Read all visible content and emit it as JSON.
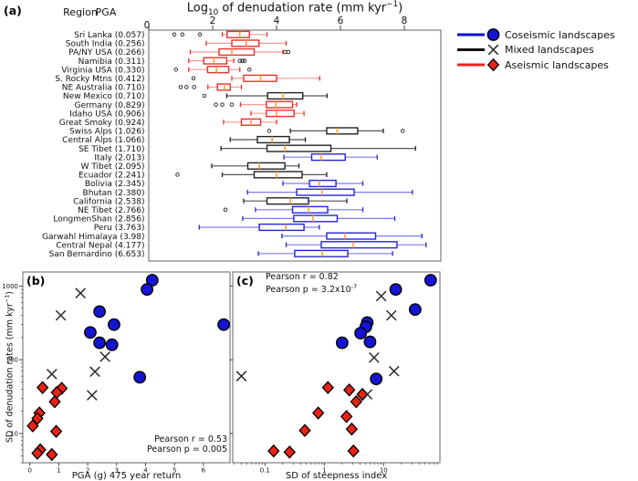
{
  "panels": {
    "a": {
      "letter": "(a)",
      "header": {
        "region": "Region",
        "pga": "PGA"
      },
      "title": {
        "pre": "Log",
        "sub": "10",
        "mid": " of denudation rate (mm kyr",
        "sup": "−1",
        "post": ")"
      }
    },
    "b": {
      "letter": "(b)",
      "ylabel": {
        "pre": "SD of denudation rates (mm kyr",
        "sup": "−1",
        "post": ")"
      },
      "xlabel": "PGA (g) 475 year return",
      "pearson_r": "Pearson r = 0.53",
      "pearson_p": "Pearson p = 0.005"
    },
    "c": {
      "letter": "(c)",
      "xlabel": "SD of steepness index",
      "pearson_r": "Pearson r = 0.82",
      "pearson_p": {
        "pre": "Pearson p = 3.2x10",
        "sup": "-7"
      }
    }
  },
  "legend": {
    "items": [
      {
        "label": "Coseismic landscapes",
        "marker": "circle",
        "line_color": "#0d0dd8",
        "marker_color": "#1414d2"
      },
      {
        "label": "Mixed landscapes",
        "marker": "x",
        "line_color": "#111111",
        "marker_color": "#2a2a2a"
      },
      {
        "label": "Aseismic landscapes",
        "marker": "diamond",
        "line_color": "#e8231c",
        "marker_color": "#ea2215"
      }
    ]
  },
  "colors": {
    "median": "#ff9c2c",
    "frame": "#666666",
    "tick": "#444444",
    "outlier_edge": "#222222",
    "groups": {
      "aseismic": {
        "box": "#e8302a",
        "whisker": "#f59b94"
      },
      "mixed": {
        "box": "#222222",
        "whisker": "#555555"
      },
      "coseismic": {
        "box": "#2424da",
        "whisker": "#7d7df2"
      }
    }
  },
  "chart_data": [
    {
      "type": "boxplot",
      "orientation": "horizontal",
      "title": "Log10 of denudation rate (mm kyr-1)",
      "xlim": [
        0,
        9.14
      ],
      "xticks": [
        0,
        2,
        4,
        6,
        8
      ],
      "legend_position": "upper right, outside",
      "grid": false,
      "rows": [
        {
          "region": "Sri Lanka",
          "pga": "0.057",
          "group": "aseismic",
          "whislo": 2.3,
          "q1": 2.45,
          "med": 2.85,
          "q3": 3.15,
          "whishi": 3.7,
          "outliers": [
            0.8,
            1.05,
            1.6
          ]
        },
        {
          "region": "South India",
          "pga": "0.256",
          "group": "aseismic",
          "whislo": 1.8,
          "q1": 2.6,
          "med": 3.05,
          "q3": 3.45,
          "whishi": 4.3,
          "outliers": []
        },
        {
          "region": "PA/NY USA",
          "pga": "0.266",
          "group": "aseismic",
          "whislo": 1.3,
          "q1": 2.2,
          "med": 2.6,
          "q3": 3.3,
          "whishi": 4.2,
          "outliers": [
            4.27,
            4.37
          ]
        },
        {
          "region": "Namibia",
          "pga": "0.311",
          "group": "aseismic",
          "whislo": 1.25,
          "q1": 1.72,
          "med": 2.04,
          "q3": 2.44,
          "whishi": 2.66,
          "outliers": [
            2.85,
            2.93,
            3.0
          ]
        },
        {
          "region": "Virginia USA",
          "pga": "0.330",
          "group": "aseismic",
          "whislo": 1.25,
          "q1": 1.84,
          "med": 2.12,
          "q3": 2.5,
          "whishi": 2.85,
          "outliers": [
            0.85,
            3.15
          ]
        },
        {
          "region": "S. Rocky Mtns",
          "pga": "0.412",
          "group": "aseismic",
          "whislo": 2.6,
          "q1": 2.97,
          "med": 3.5,
          "q3": 4.0,
          "whishi": 5.35,
          "outliers": [
            1.4
          ]
        },
        {
          "region": "NE Australia",
          "pga": "0.710",
          "group": "aseismic",
          "whislo": 1.85,
          "q1": 2.15,
          "med": 2.37,
          "q3": 2.55,
          "whishi": 2.9,
          "outliers": [
            1.0,
            1.18,
            1.42
          ]
        },
        {
          "region": "New Mexico",
          "pga": "0.710",
          "group": "mixed",
          "whislo": 2.44,
          "q1": 3.72,
          "med": 4.2,
          "q3": 4.82,
          "whishi": 5.58,
          "outliers": [
            1.74
          ]
        },
        {
          "region": "Germany",
          "pga": "0.829",
          "group": "aseismic",
          "whislo": 2.87,
          "q1": 3.68,
          "med": 3.98,
          "q3": 4.5,
          "whishi": 4.63,
          "outliers": [
            2.1,
            2.3,
            2.6
          ]
        },
        {
          "region": "Idaho USA",
          "pga": "0.906",
          "group": "aseismic",
          "whislo": 3.2,
          "q1": 3.68,
          "med": 4.0,
          "q3": 4.55,
          "whishi": 4.86,
          "outliers": []
        },
        {
          "region": "Great Smoky",
          "pga": "0.924",
          "group": "aseismic",
          "whislo": 2.34,
          "q1": 2.9,
          "med": 3.2,
          "q3": 3.5,
          "whishi": 4.0,
          "outliers": []
        },
        {
          "region": "Swiss Alps",
          "pga": "1.026",
          "group": "mixed",
          "whislo": 4.43,
          "q1": 5.57,
          "med": 5.9,
          "q3": 6.54,
          "whishi": 7.34,
          "outliers": [
            3.77,
            7.95
          ]
        },
        {
          "region": "Central Alps",
          "pga": "1.066",
          "group": "mixed",
          "whislo": 2.55,
          "q1": 3.4,
          "med": 3.86,
          "q3": 4.4,
          "whishi": 4.9,
          "outliers": []
        },
        {
          "region": "SE Tibet",
          "pga": "1.710",
          "group": "mixed",
          "whislo": 2.26,
          "q1": 3.7,
          "med": 4.26,
          "q3": 5.7,
          "whishi": 8.35,
          "outliers": []
        },
        {
          "region": "Italy",
          "pga": "2.013",
          "group": "coseismic",
          "whislo": 4.23,
          "q1": 5.1,
          "med": 5.4,
          "q3": 6.15,
          "whishi": 7.15,
          "outliers": []
        },
        {
          "region": "W Tibet",
          "pga": "2.095",
          "group": "mixed",
          "whislo": 1.97,
          "q1": 3.1,
          "med": 3.46,
          "q3": 4.26,
          "whishi": 4.7,
          "outliers": []
        },
        {
          "region": "Ecuador",
          "pga": "2.241",
          "group": "mixed",
          "whislo": 2.3,
          "q1": 3.3,
          "med": 4.0,
          "q3": 4.8,
          "whishi": 5.57,
          "outliers": [
            0.9
          ]
        },
        {
          "region": "Bolivia",
          "pga": "2.345",
          "group": "coseismic",
          "whislo": 4.2,
          "q1": 5.03,
          "med": 5.34,
          "q3": 5.86,
          "whishi": 6.7,
          "outliers": []
        },
        {
          "region": "Bhutan",
          "pga": "2.380",
          "group": "coseismic",
          "whislo": 3.09,
          "q1": 4.63,
          "med": 5.43,
          "q3": 6.43,
          "whishi": 8.25,
          "outliers": []
        },
        {
          "region": "California",
          "pga": "2.538",
          "group": "mixed",
          "whislo": 2.97,
          "q1": 3.7,
          "med": 4.43,
          "q3": 5.0,
          "whishi": 6.2,
          "outliers": []
        },
        {
          "region": "NE Tibet",
          "pga": "2.766",
          "group": "coseismic",
          "whislo": 3.34,
          "q1": 4.5,
          "med": 5.0,
          "q3": 5.6,
          "whishi": 6.7,
          "outliers": [
            2.4
          ]
        },
        {
          "region": "LongmenShan",
          "pga": "2.856",
          "group": "coseismic",
          "whislo": 2.94,
          "q1": 4.54,
          "med": 5.14,
          "q3": 5.9,
          "whishi": 7.7,
          "outliers": []
        },
        {
          "region": "Peru",
          "pga": "3.763",
          "group": "coseismic",
          "whislo": 1.58,
          "q1": 3.46,
          "med": 4.29,
          "q3": 4.86,
          "whishi": 5.34,
          "outliers": []
        },
        {
          "region": "Garwahl Himalaya",
          "pga": "3.98",
          "group": "coseismic",
          "whislo": 4.17,
          "q1": 5.57,
          "med": 6.14,
          "q3": 7.1,
          "whishi": 8.55,
          "outliers": []
        },
        {
          "region": "Central Nepal",
          "pga": "4.177",
          "group": "coseismic",
          "whislo": 4.3,
          "q1": 5.4,
          "med": 6.4,
          "q3": 7.77,
          "whishi": 8.68,
          "outliers": []
        },
        {
          "region": "San Bernardino",
          "pga": "6.653",
          "group": "coseismic",
          "whislo": 3.43,
          "q1": 4.57,
          "med": 5.43,
          "q3": 6.23,
          "whishi": 7.63,
          "outliers": []
        }
      ]
    },
    {
      "type": "scatter",
      "panel": "b",
      "xlabel": "PGA (g) 475 year return",
      "ylabel": "SD of denudation rates (mm kyr-1)",
      "xscale": "linear",
      "yscale": "log",
      "xlim": [
        -0.24,
        6.92
      ],
      "ylim": [
        4,
        1550
      ],
      "xticks": [
        0,
        1,
        2,
        3,
        4,
        5,
        6
      ],
      "yticks": [
        10,
        100,
        1000
      ],
      "pearson_r": 0.53,
      "pearson_p": 0.005,
      "series": [
        {
          "name": "Coseismic landscapes",
          "marker": "circle",
          "points": [
            [
              4.23,
              1200
            ],
            [
              4.05,
              900
            ],
            [
              2.41,
              450
            ],
            [
              2.91,
              300
            ],
            [
              6.7,
              300
            ],
            [
              2.09,
              235
            ],
            [
              2.41,
              170
            ],
            [
              2.84,
              160
            ],
            [
              3.8,
              58
            ]
          ]
        },
        {
          "name": "Mixed landscapes",
          "marker": "x",
          "points": [
            [
              1.75,
              800
            ],
            [
              1.07,
              400
            ],
            [
              2.6,
              110
            ],
            [
              2.25,
              69
            ],
            [
              0.76,
              64
            ],
            [
              2.15,
              33
            ]
          ]
        },
        {
          "name": "Aseismic landscapes",
          "marker": "diamond",
          "points": [
            [
              0.44,
              42
            ],
            [
              1.1,
              41
            ],
            [
              0.93,
              36
            ],
            [
              0.86,
              27
            ],
            [
              0.33,
              19
            ],
            [
              0.26,
              16
            ],
            [
              0.1,
              12.7
            ],
            [
              0.91,
              10.7
            ],
            [
              0.36,
              6.0
            ],
            [
              0.26,
              5.4
            ],
            [
              0.76,
              5.2
            ]
          ]
        }
      ]
    },
    {
      "type": "scatter",
      "panel": "c",
      "xlabel": "SD of steepness index",
      "xscale": "log",
      "yscale": "log",
      "xlim": [
        0.029,
        89
      ],
      "ylim": [
        4,
        1550
      ],
      "xticks": [
        0.1,
        1,
        10
      ],
      "xtick_labels": [
        "0.1",
        "1",
        "10"
      ],
      "yticks": [
        10,
        100,
        1000
      ],
      "pearson_r": 0.82,
      "pearson_p": 3.2e-07,
      "series": [
        {
          "name": "Coseismic landscapes",
          "marker": "circle",
          "points": [
            [
              62,
              1200
            ],
            [
              16,
              900
            ],
            [
              34,
              480
            ],
            [
              5.3,
              320
            ],
            [
              5.0,
              280
            ],
            [
              4.1,
              230
            ],
            [
              5.9,
              175
            ],
            [
              2.0,
              170
            ],
            [
              7.5,
              55
            ]
          ]
        },
        {
          "name": "Mixed landscapes",
          "marker": "x",
          "points": [
            [
              9.1,
              730
            ],
            [
              13.5,
              400
            ],
            [
              6.9,
              107
            ],
            [
              15,
              70
            ],
            [
              0.04,
              60
            ],
            [
              5.3,
              34
            ]
          ]
        },
        {
          "name": "Aseismic landscapes",
          "marker": "diamond",
          "points": [
            [
              1.15,
              42
            ],
            [
              2.64,
              39
            ],
            [
              4.4,
              34
            ],
            [
              3.45,
              27
            ],
            [
              0.79,
              19
            ],
            [
              2.37,
              17
            ],
            [
              2.9,
              11.5
            ],
            [
              0.47,
              11
            ],
            [
              0.14,
              5.8
            ],
            [
              0.26,
              5.6
            ],
            [
              3.1,
              5.8
            ]
          ]
        }
      ]
    }
  ]
}
